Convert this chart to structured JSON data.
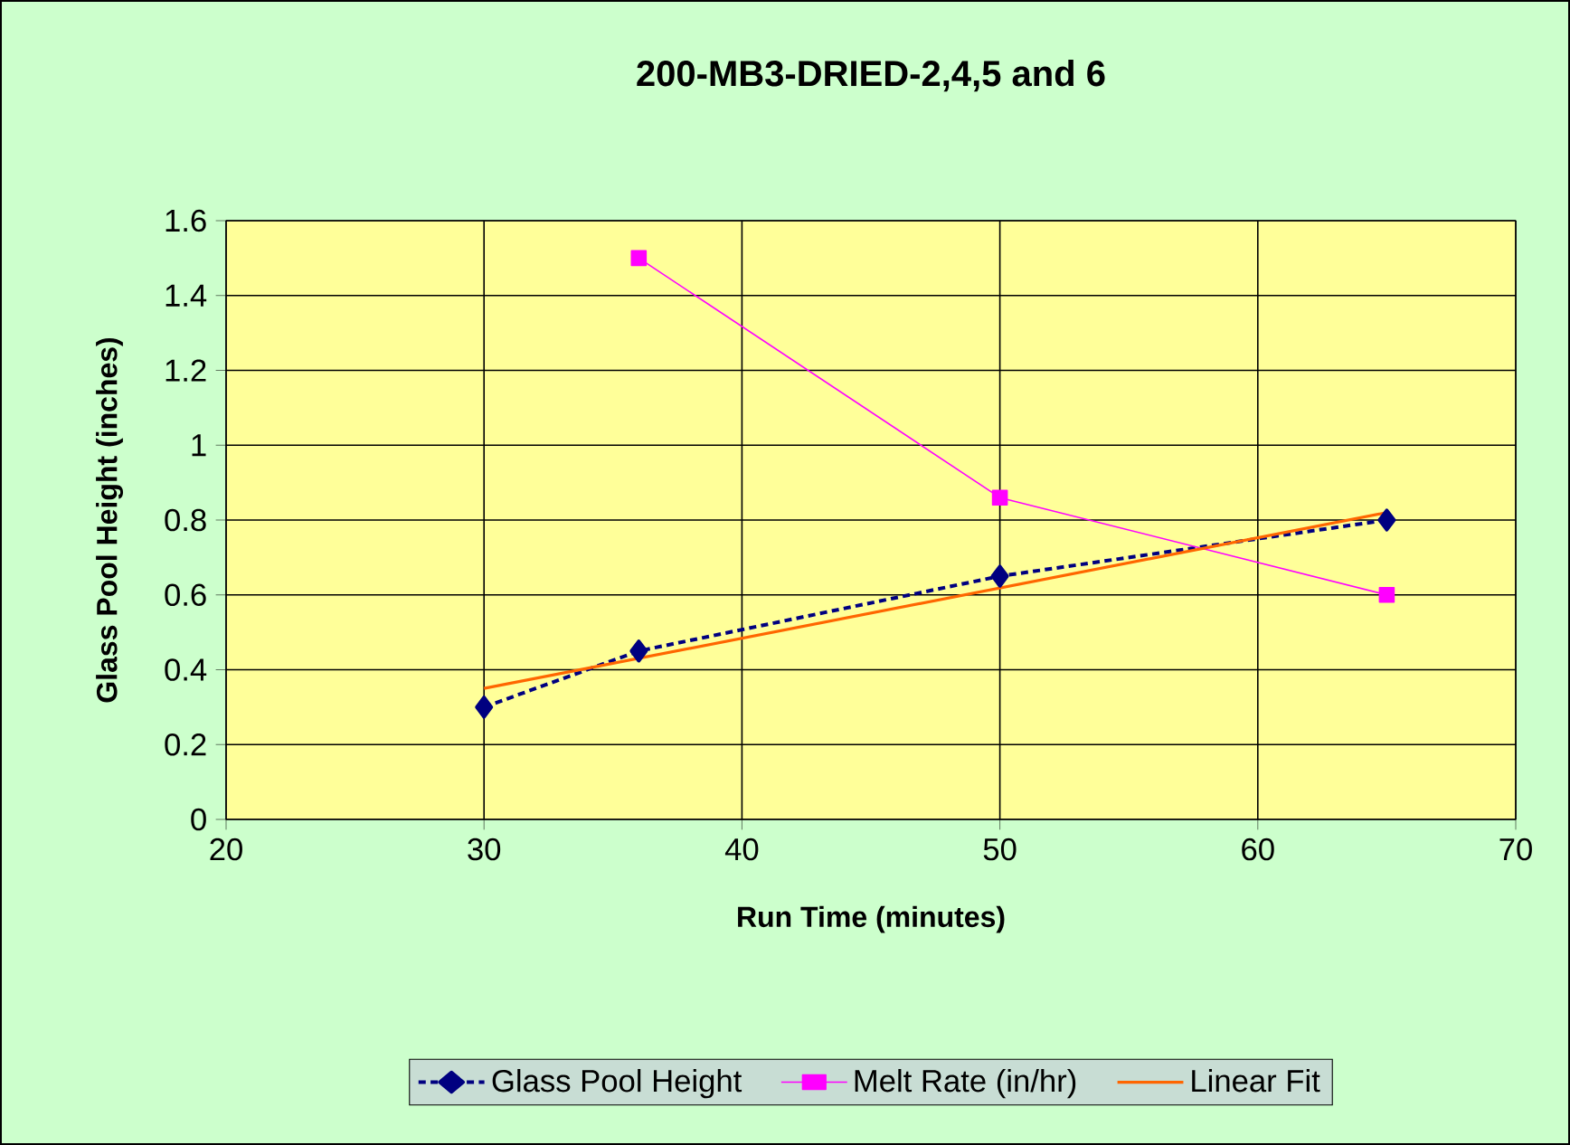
{
  "chart_data": {
    "type": "line",
    "title": "200-MB3-DRIED-2,4,5 and 6",
    "xlabel": "Run Time (minutes)",
    "ylabel": "Glass Pool Height (inches)",
    "xlim": [
      20,
      70
    ],
    "xticks": [
      20,
      30,
      40,
      50,
      60,
      70
    ],
    "ylim": [
      0,
      1.6
    ],
    "yticks": [
      0,
      0.2,
      0.4,
      0.6,
      0.8,
      1,
      1.2,
      1.4,
      1.6
    ],
    "grid": true,
    "legend": "bottom",
    "series": [
      {
        "name": "Glass Pool Height",
        "color": "#000080",
        "x": [
          30,
          36,
          50,
          65
        ],
        "values": [
          0.3,
          0.45,
          0.65,
          0.8
        ],
        "marker": "diamond",
        "line_style": "dashed"
      },
      {
        "name": "Melt Rate (in/hr)",
        "color": "#ff00ff",
        "x": [
          36,
          50,
          65
        ],
        "values": [
          1.5,
          0.86,
          0.6
        ],
        "marker": "square",
        "line_style": "solid"
      },
      {
        "name": "Linear Fit",
        "type": "line",
        "color": "#ff6600",
        "x": [
          30,
          65
        ],
        "values": [
          0.35,
          0.82
        ],
        "marker": "none",
        "line_style": "solid"
      }
    ]
  }
}
